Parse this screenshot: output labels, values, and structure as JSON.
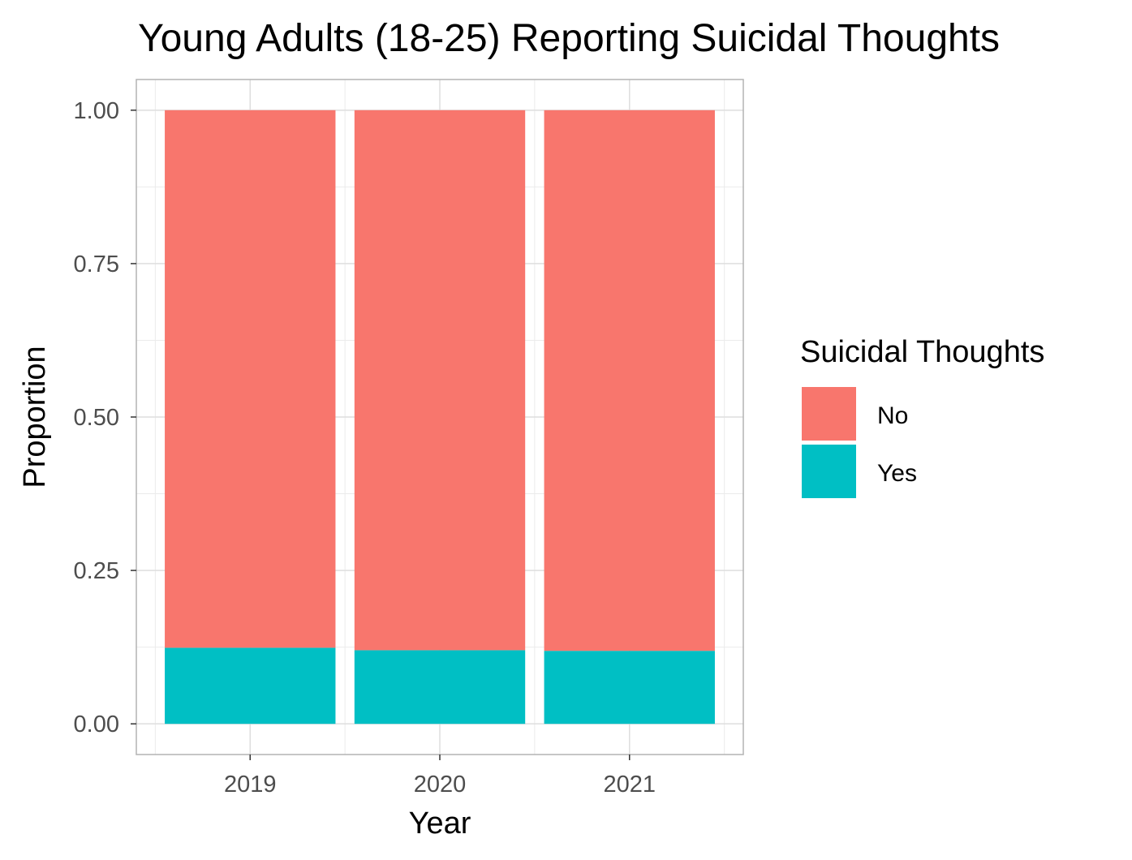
{
  "chart_data": {
    "type": "bar",
    "stacked": true,
    "title": "Young Adults (18-25) Reporting Suicidal Thoughts",
    "xlabel": "Year",
    "ylabel": "Proportion",
    "categories": [
      "2019",
      "2020",
      "2021"
    ],
    "series": [
      {
        "name": "No",
        "values": [
          0.876,
          0.88,
          0.881
        ],
        "color": "#F8766D"
      },
      {
        "name": "Yes",
        "values": [
          0.124,
          0.12,
          0.119
        ],
        "color": "#00BFC4"
      }
    ],
    "ylim": [
      -0.05,
      1.05
    ],
    "yticks": [
      0,
      0.25,
      0.5,
      0.75,
      1
    ],
    "ytick_labels": [
      "0.00",
      "0.25",
      "0.50",
      "0.75",
      "1.00"
    ],
    "legend": {
      "title": "Suicidal Thoughts",
      "position": "right"
    },
    "grid": true,
    "theme": "light"
  }
}
